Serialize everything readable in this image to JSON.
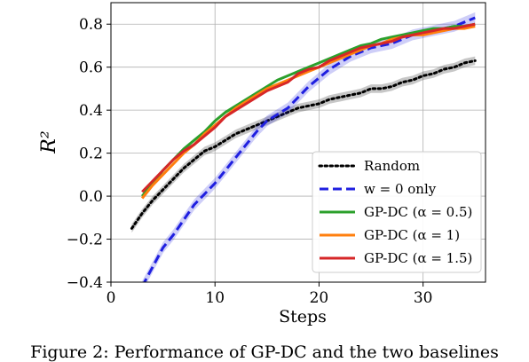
{
  "chart_data": {
    "type": "line",
    "title": "",
    "xlabel": "Steps",
    "ylabel": "R²",
    "xlim": [
      0,
      36
    ],
    "ylim": [
      -0.4,
      0.9
    ],
    "xticks": [
      0,
      10,
      20,
      30
    ],
    "yticks": [
      -0.4,
      -0.2,
      0.0,
      0.2,
      0.4,
      0.6,
      0.8
    ],
    "x_tick_labels": [
      "0",
      "10",
      "20",
      "30"
    ],
    "y_tick_labels": [
      "−0.4",
      "−0.2",
      "0.0",
      "0.2",
      "0.4",
      "0.6",
      "0.8"
    ],
    "grid": true,
    "legend_position": "bottom-right",
    "series": [
      {
        "name": "Random",
        "color": "#000000",
        "style": "dotted",
        "band": 0.02,
        "x": [
          2,
          3,
          4,
          5,
          6,
          7,
          8,
          9,
          10,
          11,
          12,
          13,
          14,
          15,
          16,
          17,
          18,
          19,
          20,
          21,
          22,
          23,
          24,
          25,
          26,
          27,
          28,
          29,
          30,
          31,
          32,
          33,
          34,
          35
        ],
        "y": [
          -0.15,
          -0.08,
          -0.02,
          0.03,
          0.08,
          0.13,
          0.17,
          0.21,
          0.23,
          0.26,
          0.29,
          0.31,
          0.33,
          0.35,
          0.37,
          0.39,
          0.41,
          0.42,
          0.43,
          0.45,
          0.46,
          0.47,
          0.48,
          0.5,
          0.5,
          0.51,
          0.53,
          0.54,
          0.56,
          0.57,
          0.59,
          0.6,
          0.62,
          0.63
        ]
      },
      {
        "name": "w = 0 only",
        "color": "#1f1fe0",
        "style": "dashed",
        "band": 0.025,
        "x": [
          3,
          4,
          5,
          6,
          7,
          8,
          9,
          10,
          11,
          12,
          13,
          14,
          15,
          16,
          17,
          18,
          19,
          20,
          21,
          22,
          23,
          24,
          25,
          26,
          27,
          28,
          29,
          30,
          31,
          32,
          33,
          34,
          35
        ],
        "y": [
          -0.42,
          -0.33,
          -0.24,
          -0.18,
          -0.11,
          -0.04,
          0.01,
          0.06,
          0.12,
          0.18,
          0.24,
          0.3,
          0.35,
          0.38,
          0.41,
          0.46,
          0.51,
          0.55,
          0.59,
          0.62,
          0.65,
          0.67,
          0.69,
          0.7,
          0.71,
          0.73,
          0.75,
          0.76,
          0.77,
          0.78,
          0.79,
          0.81,
          0.83
        ]
      },
      {
        "name": "GP-DC (α = 0.5)",
        "color": "#2ca02c",
        "style": "solid",
        "x": [
          3,
          4,
          5,
          6,
          7,
          8,
          9,
          10,
          11,
          12,
          13,
          14,
          15,
          16,
          17,
          18,
          19,
          20,
          21,
          22,
          23,
          24,
          25,
          26,
          27,
          28,
          29,
          30,
          31,
          32,
          33,
          34,
          35
        ],
        "y": [
          0.0,
          0.06,
          0.12,
          0.17,
          0.22,
          0.26,
          0.3,
          0.35,
          0.39,
          0.42,
          0.45,
          0.48,
          0.51,
          0.54,
          0.56,
          0.58,
          0.6,
          0.62,
          0.64,
          0.66,
          0.68,
          0.7,
          0.71,
          0.73,
          0.74,
          0.75,
          0.76,
          0.77,
          0.78,
          0.78,
          0.79,
          0.79,
          0.8
        ]
      },
      {
        "name": "GP-DC (α = 1)",
        "color": "#ff7f0e",
        "style": "solid",
        "x": [
          3,
          4,
          5,
          6,
          7,
          8,
          9,
          10,
          11,
          12,
          13,
          14,
          15,
          16,
          17,
          18,
          19,
          20,
          21,
          22,
          23,
          24,
          25,
          26,
          27,
          28,
          29,
          30,
          31,
          32,
          33,
          34,
          35
        ],
        "y": [
          -0.01,
          0.05,
          0.1,
          0.15,
          0.2,
          0.24,
          0.29,
          0.33,
          0.37,
          0.41,
          0.44,
          0.47,
          0.5,
          0.52,
          0.54,
          0.56,
          0.58,
          0.6,
          0.62,
          0.64,
          0.66,
          0.68,
          0.7,
          0.71,
          0.73,
          0.74,
          0.75,
          0.75,
          0.76,
          0.77,
          0.78,
          0.78,
          0.79
        ]
      },
      {
        "name": "GP-DC (α = 1.5)",
        "color": "#d62728",
        "style": "solid",
        "x": [
          3,
          4,
          5,
          6,
          7,
          8,
          9,
          10,
          11,
          12,
          13,
          14,
          15,
          16,
          17,
          18,
          19,
          20,
          21,
          22,
          23,
          24,
          25,
          26,
          27,
          28,
          29,
          30,
          31,
          32,
          33,
          34,
          35
        ],
        "y": [
          0.02,
          0.07,
          0.12,
          0.17,
          0.21,
          0.24,
          0.28,
          0.32,
          0.37,
          0.4,
          0.43,
          0.46,
          0.49,
          0.51,
          0.53,
          0.57,
          0.59,
          0.6,
          0.63,
          0.65,
          0.67,
          0.69,
          0.7,
          0.71,
          0.72,
          0.74,
          0.75,
          0.76,
          0.77,
          0.78,
          0.78,
          0.79,
          0.8
        ]
      }
    ]
  },
  "caption": "Figure 2: Performance of GP-DC and the two baselines"
}
